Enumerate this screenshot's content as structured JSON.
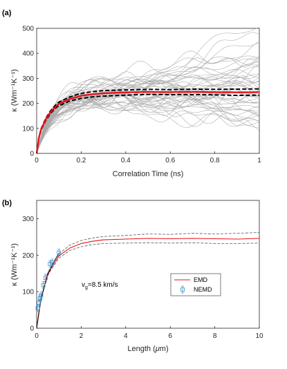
{
  "chart_data": [
    {
      "panel_label": "(a)",
      "type": "line",
      "xlabel": "Correlation Time (ns)",
      "ylabel": "κ (Wm⁻¹K⁻¹)",
      "xlim": [
        0,
        1
      ],
      "ylim": [
        0,
        500
      ],
      "x_ticks": [
        0,
        0.2,
        0.4,
        0.6,
        0.8,
        1
      ],
      "x_tick_labels": [
        "0",
        "0.2",
        "0.4",
        "0.6",
        "0.8",
        "1"
      ],
      "y_ticks": [
        0,
        100,
        200,
        300,
        400,
        500
      ],
      "y_tick_labels": [
        "0",
        "100",
        "200",
        "300",
        "400",
        "500"
      ],
      "grid": false,
      "colors": {
        "samples": "#a9a9a9",
        "mean": "#e8101a",
        "bounds": "#000000"
      },
      "series": [
        {
          "role": "individual runs",
          "style": "thin gray lines",
          "count": 50,
          "final_values": [
            480,
            460,
            440,
            425,
            410,
            400,
            390,
            375,
            360,
            350,
            340,
            330,
            325,
            315,
            305,
            300,
            295,
            290,
            285,
            280,
            275,
            270,
            265,
            262,
            258,
            255,
            250,
            246,
            240,
            236,
            232,
            228,
            224,
            220,
            215,
            210,
            205,
            198,
            190,
            182,
            175,
            168,
            160,
            150,
            140,
            132,
            125,
            115,
            105,
            95
          ]
        },
        {
          "role": "average",
          "style": "thick red line",
          "x": [
            0,
            0.01,
            0.02,
            0.04,
            0.06,
            0.08,
            0.1,
            0.15,
            0.2,
            0.25,
            0.3,
            0.4,
            0.5,
            0.6,
            0.7,
            0.8,
            0.9,
            1.0
          ],
          "y": [
            0,
            62,
            95,
            135,
            162,
            183,
            198,
            218,
            230,
            237,
            240,
            244,
            246,
            245,
            246,
            245,
            244,
            245
          ]
        },
        {
          "role": "average + standard error",
          "style": "dashed black line",
          "x": [
            0,
            0.01,
            0.02,
            0.04,
            0.06,
            0.08,
            0.1,
            0.15,
            0.2,
            0.25,
            0.3,
            0.4,
            0.5,
            0.6,
            0.7,
            0.8,
            0.9,
            1.0
          ],
          "y": [
            0,
            64,
            98,
            139,
            167,
            189,
            205,
            226,
            240,
            247,
            251,
            254,
            256,
            255,
            257,
            256,
            257,
            258
          ]
        },
        {
          "role": "average - standard error",
          "style": "dashed black line",
          "x": [
            0,
            0.01,
            0.02,
            0.04,
            0.06,
            0.08,
            0.1,
            0.15,
            0.2,
            0.25,
            0.3,
            0.4,
            0.5,
            0.6,
            0.7,
            0.8,
            0.9,
            1.0
          ],
          "y": [
            0,
            60,
            92,
            131,
            157,
            177,
            191,
            210,
            220,
            226,
            229,
            233,
            236,
            235,
            235,
            234,
            232,
            233
          ]
        }
      ]
    },
    {
      "panel_label": "(b)",
      "type": "line",
      "xlabel": "Length (μm)",
      "ylabel": "κ (Wm⁻¹K⁻¹)",
      "xlim": [
        0,
        10
      ],
      "ylim": [
        0,
        350
      ],
      "x_ticks": [
        0,
        2,
        4,
        6,
        8,
        10
      ],
      "x_tick_labels": [
        "0",
        "2",
        "4",
        "6",
        "8",
        "10"
      ],
      "y_ticks": [
        0,
        100,
        200,
        300
      ],
      "y_tick_labels": [
        "0",
        "100",
        "200",
        "300"
      ],
      "grid": false,
      "annotation": "v",
      "annotation_subscript": "g",
      "annotation_rest": "=8.5 km/s",
      "legend": {
        "placement": "center-right",
        "entries": [
          "EMD",
          "NEMD"
        ]
      },
      "colors": {
        "emd": "#e8101a",
        "emd_bounds": "#555555",
        "fit": "#000000",
        "nemd": "#3a8fc8"
      },
      "series": [
        {
          "name": "EMD",
          "style": "red solid line",
          "x": [
            0,
            0.2,
            0.5,
            1,
            1.5,
            2,
            2.5,
            3,
            4,
            5,
            6,
            7,
            8,
            9,
            10
          ],
          "y": [
            0,
            80,
            150,
            198,
            220,
            232,
            238,
            242,
            244,
            246,
            245,
            246,
            245,
            244,
            246
          ]
        },
        {
          "role": "EMD upper bound",
          "style": "gray dashed line",
          "x": [
            0,
            0.2,
            0.5,
            1,
            1.5,
            2,
            2.5,
            3,
            4,
            5,
            6,
            7,
            8,
            9,
            10
          ],
          "y": [
            0,
            82,
            154,
            204,
            228,
            240,
            247,
            251,
            254,
            258,
            257,
            260,
            258,
            260,
            262
          ]
        },
        {
          "role": "EMD lower bound",
          "style": "gray dashed line",
          "x": [
            0,
            0.2,
            0.5,
            1,
            1.5,
            2,
            2.5,
            3,
            4,
            5,
            6,
            7,
            8,
            9,
            10
          ],
          "y": [
            0,
            78,
            146,
            192,
            213,
            223,
            229,
            232,
            233,
            234,
            233,
            234,
            232,
            232,
            233
          ]
        },
        {
          "role": "fit",
          "style": "black solid line",
          "x": [
            0,
            0.1,
            0.2,
            0.3,
            0.4,
            0.5,
            0.6,
            0.8,
            1.0
          ],
          "y": [
            0,
            45,
            80,
            105,
            125,
            145,
            160,
            185,
            205
          ]
        },
        {
          "name": "NEMD",
          "style": "blue square markers with error bars",
          "x": [
            0.05,
            0.1,
            0.15,
            0.2,
            0.3,
            0.4,
            0.6,
            0.7,
            1.0
          ],
          "y": [
            55,
            70,
            82,
            90,
            118,
            138,
            176,
            180,
            207
          ]
        }
      ]
    }
  ]
}
